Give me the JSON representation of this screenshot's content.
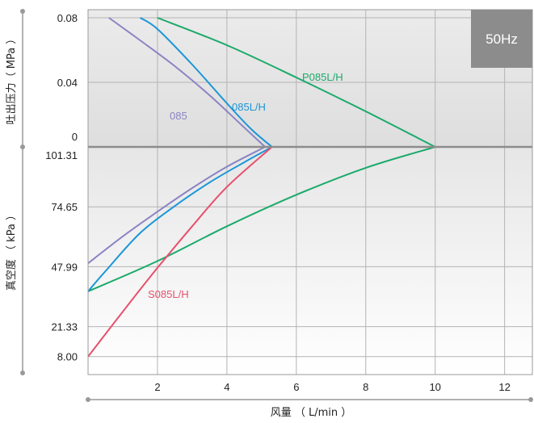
{
  "chart_data": {
    "type": "line",
    "badge": "50Hz",
    "xlabel": "风量 （ L/min ）",
    "x_ticks": [
      "2",
      "4",
      "6",
      "8",
      "10",
      "12"
    ],
    "xlim": [
      0,
      12.8
    ],
    "upper_axis": {
      "label": "吐出压力（ MPa ）",
      "ticks": [
        "0.08",
        "0.04",
        "0"
      ],
      "ylim": [
        0,
        0.085
      ]
    },
    "lower_axis": {
      "label": "真空度 （ kPa ）",
      "ticks": [
        "101.31",
        "74.65",
        "47.99",
        "21.33",
        "8.00"
      ],
      "ylim": [
        101.31,
        0
      ]
    },
    "colors": {
      "P085L/H": "#1aaa6a",
      "085L/H": "#1a96d8",
      "085": "#8b84c4",
      "S085L/H": "#e8506e",
      "badge_bg": "#8c8c8c",
      "plot_bg_top": "#e8e8e8",
      "plot_bg_bottom": "#ffffff",
      "grid": "#b4b4b4",
      "zero_line": "#8c8c8c"
    },
    "series": [
      {
        "name": "P085L/H",
        "pressure": {
          "x": [
            2.0,
            4.0,
            6.0,
            8.0,
            10.0
          ],
          "y": [
            0.08,
            0.063,
            0.043,
            0.022,
            0.0
          ]
        },
        "vacuum": {
          "x": [
            10.0,
            8.0,
            6.0,
            4.0,
            2.0,
            0.0
          ],
          "y": [
            101.31,
            92.0,
            80.0,
            66.0,
            50.5,
            37.0
          ]
        }
      },
      {
        "name": "085L/H",
        "pressure": {
          "x": [
            1.5,
            2.0,
            3.0,
            4.0,
            4.7,
            5.3
          ],
          "y": [
            0.08,
            0.073,
            0.051,
            0.027,
            0.011,
            0.0
          ]
        },
        "vacuum": {
          "x": [
            5.3,
            4.5,
            3.5,
            2.5,
            1.5,
            0.5,
            0.0
          ],
          "y": [
            101.31,
            94.5,
            85.5,
            75.0,
            63.0,
            46.0,
            37.0
          ]
        }
      },
      {
        "name": "085",
        "pressure": {
          "x": [
            0.6,
            1.5,
            2.5,
            3.5,
            4.4,
            5.1
          ],
          "y": [
            0.08,
            0.066,
            0.05,
            0.032,
            0.014,
            0.0
          ]
        },
        "vacuum": {
          "x": [
            5.1,
            4.0,
            3.0,
            2.0,
            1.0,
            0.0
          ],
          "y": [
            101.31,
            92.5,
            83.0,
            72.5,
            61.5,
            49.5
          ]
        }
      },
      {
        "name": "S085L/H",
        "vacuum": {
          "x": [
            0.0,
            1.0,
            2.0,
            3.0,
            4.0,
            5.3
          ],
          "y": [
            8.0,
            28.0,
            47.5,
            66.0,
            83.5,
            101.31
          ]
        }
      }
    ],
    "labels": {
      "P085L/H": "P085L/H",
      "085L/H": "085L/H",
      "085": "085",
      "S085L/H": "S085L/H"
    },
    "grid": true
  }
}
